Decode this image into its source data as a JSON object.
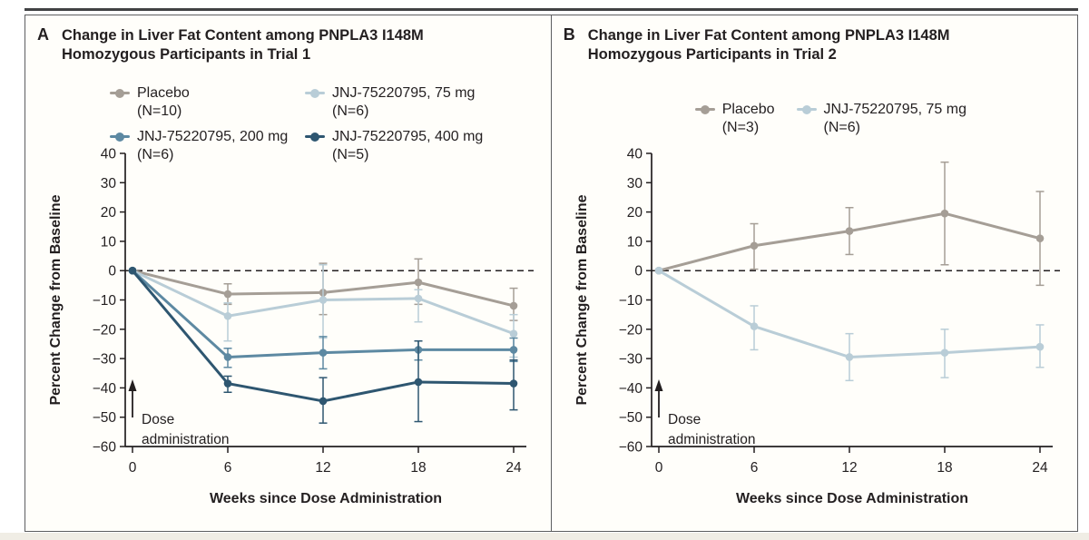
{
  "figure": {
    "panels": [
      {
        "label": "A",
        "title_lines": [
          "Change in Liver Fat Content among PNPLA3 I148M",
          "Homozygous Participants in Trial 1"
        ]
      },
      {
        "label": "B",
        "title_lines": [
          "Change in Liver Fat Content among PNPLA3 I148M",
          "Homozygous Participants in Trial 2"
        ]
      }
    ],
    "axis_color": "#231f20"
  },
  "chart_data": [
    {
      "type": "line",
      "panel": "A",
      "title": "Change in Liver Fat Content among PNPLA3 I148M Homozygous Participants in Trial 1",
      "xlabel": "Weeks since Dose Administration",
      "ylabel": "Percent Change from Baseline",
      "x": [
        0,
        6,
        12,
        18,
        24
      ],
      "xticklabels": [
        "0",
        "6",
        "12",
        "18",
        "24"
      ],
      "ylim": [
        -60,
        40
      ],
      "yticks": [
        40,
        30,
        20,
        10,
        0,
        -10,
        -20,
        -30,
        -40,
        -50,
        -60
      ],
      "grid": false,
      "zero_reference_line": true,
      "legend_position": "top",
      "annotation_lines": [
        "Dose",
        "administration"
      ],
      "series": [
        {
          "name": "Placebo",
          "n": "(N=10)",
          "color": "#a59e96",
          "values": [
            0,
            -8,
            -7.5,
            -4,
            -12
          ],
          "err_up": [
            0,
            3.5,
            10,
            8,
            6
          ],
          "err_down": [
            0,
            3.5,
            7.5,
            7.5,
            5
          ]
        },
        {
          "name": "JNJ-75220795, 75 mg",
          "n": "(N=6)",
          "color": "#b9cdd7",
          "values": [
            0,
            -15.5,
            -10,
            -9.5,
            -21.5
          ],
          "err_up": [
            0,
            4.5,
            12,
            3,
            6.5
          ],
          "err_down": [
            0,
            8.5,
            13,
            8,
            8
          ]
        },
        {
          "name": "JNJ-75220795, 200 mg",
          "n": "(N=6)",
          "color": "#5d89a2",
          "values": [
            0,
            -29.5,
            -28,
            -27,
            -27
          ],
          "err_up": [
            0,
            3,
            5.5,
            3,
            4
          ],
          "err_down": [
            0,
            3.5,
            5.5,
            3.5,
            4
          ]
        },
        {
          "name": "JNJ-75220795, 400 mg",
          "n": "(N=5)",
          "color": "#2e5670",
          "values": [
            0,
            -38.5,
            -44.5,
            -38,
            -38.5
          ],
          "err_up": [
            0,
            2.5,
            8,
            14,
            8
          ],
          "err_down": [
            0,
            3,
            7.5,
            13.5,
            9
          ]
        }
      ]
    },
    {
      "type": "line",
      "panel": "B",
      "title": "Change in Liver Fat Content among PNPLA3 I148M Homozygous Participants in Trial 2",
      "xlabel": "Weeks since Dose Administration",
      "ylabel": "Percent Change from Baseline",
      "x": [
        0,
        6,
        12,
        18,
        24
      ],
      "xticklabels": [
        "0",
        "6",
        "12",
        "18",
        "24"
      ],
      "ylim": [
        -60,
        40
      ],
      "yticks": [
        40,
        30,
        20,
        10,
        0,
        -10,
        -20,
        -30,
        -40,
        -50,
        -60
      ],
      "grid": false,
      "zero_reference_line": true,
      "legend_position": "top",
      "annotation_lines": [
        "Dose",
        "administration"
      ],
      "series": [
        {
          "name": "Placebo",
          "n": "(N=3)",
          "color": "#a59e96",
          "values": [
            0,
            8.5,
            13.5,
            19.5,
            11
          ],
          "err_up": [
            0,
            7.5,
            8,
            17.5,
            16
          ],
          "err_down": [
            0,
            8,
            8,
            17.5,
            16
          ]
        },
        {
          "name": "JNJ-75220795, 75 mg",
          "n": "(N=6)",
          "color": "#b9cdd7",
          "values": [
            0,
            -19,
            -29.5,
            -28,
            -26
          ],
          "err_up": [
            0,
            7,
            8,
            8,
            7.5
          ],
          "err_down": [
            0,
            8,
            8,
            8.5,
            7
          ]
        }
      ]
    }
  ]
}
